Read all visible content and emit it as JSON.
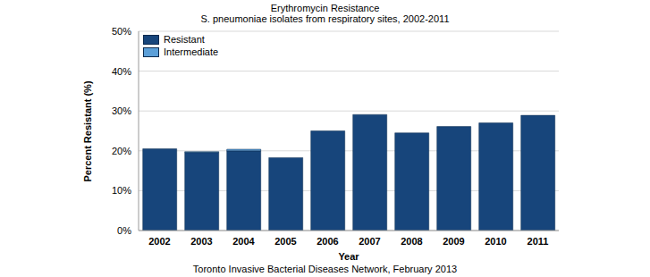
{
  "chart_data": {
    "type": "bar",
    "title": "Erythromycin Resistance",
    "subtitle": "S. pneumoniae isolates from respiratory sites, 2002-2011",
    "x_label": "Year",
    "y_label": "Percent Resistant (%)",
    "footer": "Toronto Invasive Bacterial Diseases Network, February 2013",
    "categories": [
      "2002",
      "2003",
      "2004",
      "2005",
      "2006",
      "2007",
      "2008",
      "2009",
      "2010",
      "2011"
    ],
    "series": [
      {
        "name": "Resistant",
        "color": "#17457b",
        "values": [
          20.5,
          19.6,
          20.0,
          18.3,
          25.0,
          29.1,
          24.5,
          26.1,
          27.0,
          28.9
        ]
      },
      {
        "name": "Intermediate",
        "color": "#5b9fd8",
        "values": [
          0,
          0.2,
          0.4,
          0,
          0,
          0,
          0,
          0,
          0,
          0
        ]
      }
    ],
    "stacked": true,
    "ylim": [
      0,
      50
    ],
    "yticks": [
      {
        "value": 0,
        "label": "0%"
      },
      {
        "value": 10,
        "label": "10%"
      },
      {
        "value": 20,
        "label": "20%"
      },
      {
        "value": 30,
        "label": "30%"
      },
      {
        "value": 40,
        "label": "40%"
      },
      {
        "value": 50,
        "label": "50%"
      }
    ],
    "grid": true,
    "legend": "upper left"
  }
}
